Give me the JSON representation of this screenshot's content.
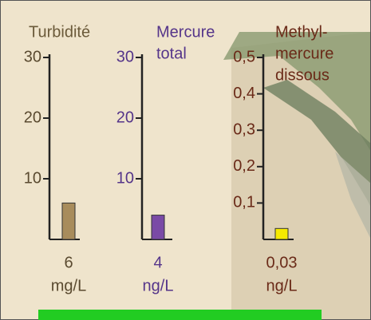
{
  "chart_data": [
    {
      "type": "bar",
      "title": [
        "Turbidité"
      ],
      "title_color": "#6b5a3a",
      "ylim": [
        0,
        30
      ],
      "yticks": [
        10,
        20,
        30
      ],
      "values": [
        6
      ],
      "value_labels": [
        "6"
      ],
      "unit": "mg/L",
      "color": "#a88c5c",
      "text_color": "#5a4a30"
    },
    {
      "type": "bar",
      "title": [
        "Mercure",
        "total"
      ],
      "title_color": "#55358a",
      "ylim": [
        0,
        30
      ],
      "yticks": [
        10,
        20,
        30
      ],
      "values": [
        4
      ],
      "value_labels": [
        "4"
      ],
      "unit": "ng/L",
      "color": "#7a4aa6",
      "text_color": "#55358a"
    },
    {
      "type": "bar",
      "title": [
        "Methyl-",
        "mercure",
        "dissous"
      ],
      "title_color": "#6a2a18",
      "ylim": [
        0,
        0.5
      ],
      "yticks": [
        {
          "value": 0.1,
          "label": "0,1"
        },
        {
          "value": 0.2,
          "label": "0,2"
        },
        {
          "value": 0.3,
          "label": "0,3"
        },
        {
          "value": 0.4,
          "label": "0,4"
        },
        {
          "value": 0.5,
          "label": "0,5"
        }
      ],
      "values": [
        0.03
      ],
      "value_labels": [
        "0,03"
      ],
      "unit": "ng/L",
      "color": "#f6ea00",
      "text_color": "#6a2a18"
    }
  ]
}
